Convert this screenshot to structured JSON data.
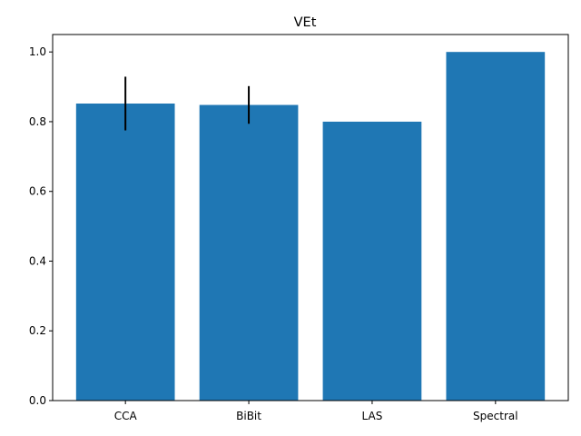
{
  "chart_data": {
    "type": "bar",
    "title": "VEt",
    "xlabel": "",
    "ylabel": "",
    "categories": [
      "CCA",
      "BiBit",
      "LAS",
      "Spectral"
    ],
    "values": [
      0.852,
      0.848,
      0.8,
      1.0
    ],
    "error": [
      0.077,
      0.054,
      null,
      null
    ],
    "ylim": [
      0,
      1.05
    ],
    "yticks": [
      0.0,
      0.2,
      0.4,
      0.6,
      0.8,
      1.0
    ],
    "ytick_labels": [
      "0.0",
      "0.2",
      "0.4",
      "0.6",
      "0.8",
      "1.0"
    ],
    "bar_color": "#1f77b4",
    "error_color": "#000000",
    "grid": false,
    "legend": "none"
  }
}
